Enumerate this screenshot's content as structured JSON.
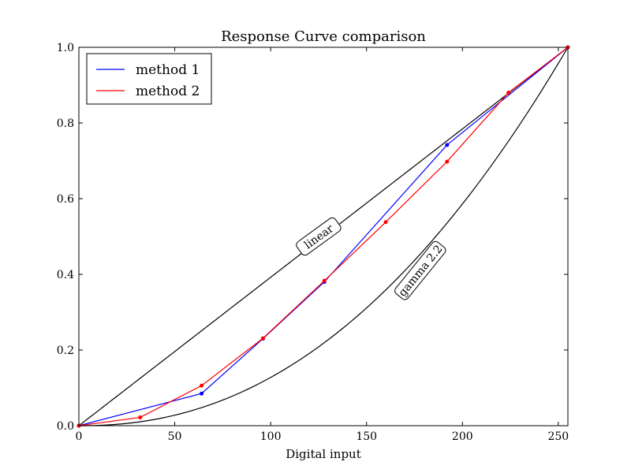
{
  "chart_data": {
    "type": "line",
    "title": "Response Curve comparison",
    "xlabel": "Digital input",
    "ylabel": "",
    "xlim": [
      0,
      255
    ],
    "ylim": [
      0.0,
      1.0
    ],
    "x_ticks": [
      0,
      50,
      100,
      150,
      200,
      250
    ],
    "x_tick_labels": [
      "0",
      "50",
      "100",
      "150",
      "200",
      "250"
    ],
    "y_ticks": [
      0.0,
      0.2,
      0.4,
      0.6,
      0.8,
      1.0
    ],
    "y_tick_labels": [
      "0.0",
      "0.2",
      "0.4",
      "0.6",
      "0.8",
      "1.0"
    ],
    "grid": false,
    "legend_position": "top-left",
    "series": [
      {
        "name": "method 1",
        "color": "#0000ff",
        "marker": "dot",
        "x": [
          0,
          64,
          96,
          128,
          192,
          255
        ],
        "y": [
          0.0,
          0.085,
          0.23,
          0.38,
          0.742,
          1.0
        ]
      },
      {
        "name": "method 2",
        "color": "#ff0000",
        "marker": "dot",
        "x": [
          0,
          32,
          64,
          96,
          128,
          160,
          192,
          224,
          255
        ],
        "y": [
          0.0,
          0.022,
          0.106,
          0.231,
          0.383,
          0.538,
          0.698,
          0.88,
          1.0
        ]
      }
    ],
    "reference_curves": [
      {
        "label": "linear",
        "color": "#000000",
        "gamma": 1.0
      },
      {
        "label": "gamma 2.2",
        "color": "#000000",
        "gamma": 2.2
      }
    ],
    "annotations": [
      {
        "text": "linear",
        "x": 125,
        "y": 0.5,
        "rotation_deg": -36
      },
      {
        "text": "gamma 2.2",
        "x": 178,
        "y": 0.41,
        "rotation_deg": -51
      }
    ]
  }
}
